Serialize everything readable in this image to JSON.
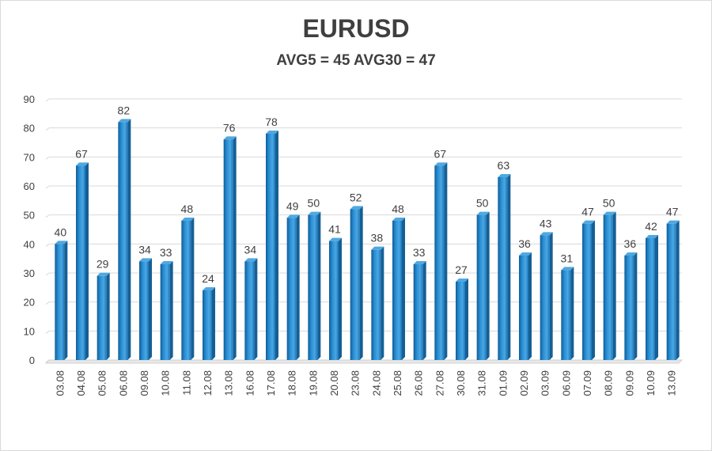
{
  "chart_data": {
    "type": "bar",
    "title": "EURUSD",
    "subtitle": "AVG5 = 45 AVG30 = 47",
    "categories": [
      "03.08",
      "04.08",
      "05.08",
      "06.08",
      "09.08",
      "10.08",
      "11.08",
      "12.08",
      "13.08",
      "16.08",
      "17.08",
      "18.08",
      "19.08",
      "20.08",
      "23.08",
      "24.08",
      "25.08",
      "26.08",
      "27.08",
      "30.08",
      "31.08",
      "01.09",
      "02.09",
      "03.09",
      "06.09",
      "07.09",
      "08.09",
      "09.09",
      "10.09",
      "13.09"
    ],
    "values": [
      40,
      67,
      29,
      82,
      34,
      33,
      48,
      24,
      76,
      34,
      78,
      49,
      50,
      41,
      52,
      38,
      48,
      33,
      67,
      27,
      50,
      63,
      36,
      43,
      31,
      47,
      50,
      36,
      42,
      47
    ],
    "yticks": [
      "0",
      "10",
      "20",
      "30",
      "40",
      "50",
      "60",
      "70",
      "80",
      "90"
    ],
    "ylim": [
      0,
      90
    ],
    "grid": true,
    "bar_color": "#1f7fc4",
    "bar_color_light": "#4fa8e0",
    "bar_color_dark": "#155f95"
  }
}
